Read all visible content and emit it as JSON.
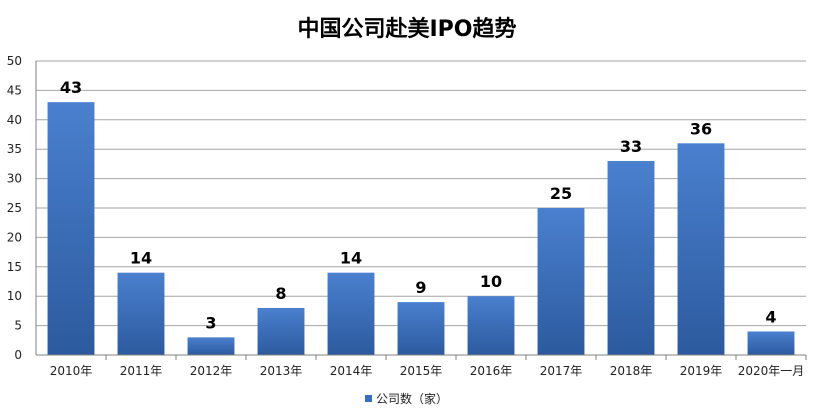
{
  "chart_data": {
    "type": "bar",
    "title": "中国公司赴美IPO趋势",
    "categories": [
      "2010年",
      "2011年",
      "2012年",
      "2013年",
      "2014年",
      "2015年",
      "2016年",
      "2017年",
      "2018年",
      "2019年",
      "2020年一月"
    ],
    "series": [
      {
        "name": "公司数（家）",
        "values": [
          43,
          14,
          3,
          8,
          14,
          9,
          10,
          25,
          33,
          36,
          4
        ]
      }
    ],
    "ylim": [
      0,
      50
    ],
    "yticks": [
      0,
      5,
      10,
      15,
      20,
      25,
      30,
      35,
      40,
      45,
      50
    ],
    "grid": true,
    "legend_position": "bottom",
    "bar_color": "#3a6fc0"
  }
}
